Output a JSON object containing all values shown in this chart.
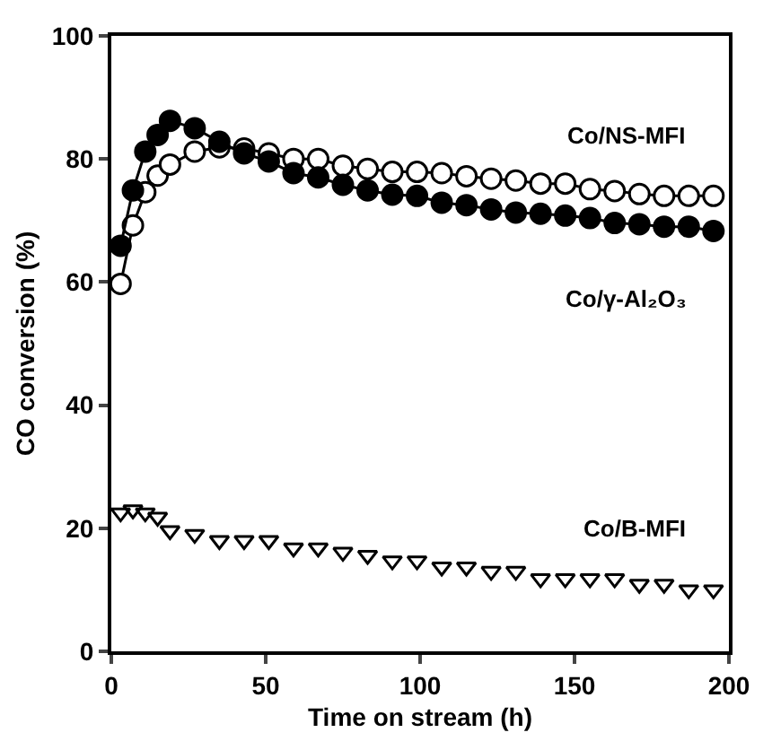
{
  "chart_data": {
    "type": "line",
    "xlabel": "Time on stream (h)",
    "ylabel": "CO conversion (%)",
    "x": [
      3,
      7,
      11,
      15,
      19,
      27,
      35,
      43,
      51,
      59,
      67,
      75,
      83,
      91,
      99,
      107,
      115,
      123,
      131,
      139,
      147,
      155,
      163,
      171,
      179,
      187,
      195
    ],
    "series": [
      {
        "name": "Co/NS-MFI",
        "marker": "circle-open",
        "color": "#000000",
        "values": [
          59.7,
          69.2,
          74.6,
          77.3,
          79.1,
          81.2,
          81.9,
          81.7,
          80.9,
          80,
          80,
          78.9,
          78.4,
          77.9,
          77.9,
          77.7,
          77.2,
          76.8,
          76.5,
          76,
          76,
          75.1,
          74.8,
          74.3,
          74,
          74,
          74
        ]
      },
      {
        "name": "Co/γ-Al₂O₃",
        "marker": "circle",
        "color": "#000000",
        "values": [
          65.9,
          74.9,
          81.2,
          83.9,
          86.2,
          85,
          82.8,
          80.9,
          79.6,
          77.7,
          77,
          75.8,
          74.9,
          74.2,
          74,
          72.9,
          72.5,
          71.8,
          71.3,
          71.1,
          70.8,
          70.4,
          69.6,
          69.4,
          69,
          69,
          68.3
        ]
      },
      {
        "name": "Co/B-MFI",
        "type": "scatter",
        "marker": "triangle-open",
        "color": "#000000",
        "values": [
          22.5,
          23,
          22.5,
          21.8,
          19.6,
          19,
          18,
          18,
          18,
          16.8,
          16.8,
          16.1,
          15.6,
          14.7,
          14.7,
          13.7,
          13.7,
          13,
          13,
          11.8,
          11.8,
          11.8,
          11.8,
          10.9,
          10.9,
          10,
          10
        ]
      }
    ],
    "xlim": [
      0,
      200
    ],
    "xticks": [
      0,
      50,
      100,
      150,
      200
    ],
    "ylim": [
      0,
      100
    ],
    "yticks": [
      0,
      20,
      40,
      60,
      80,
      100
    ],
    "grid": false,
    "legend": false
  }
}
